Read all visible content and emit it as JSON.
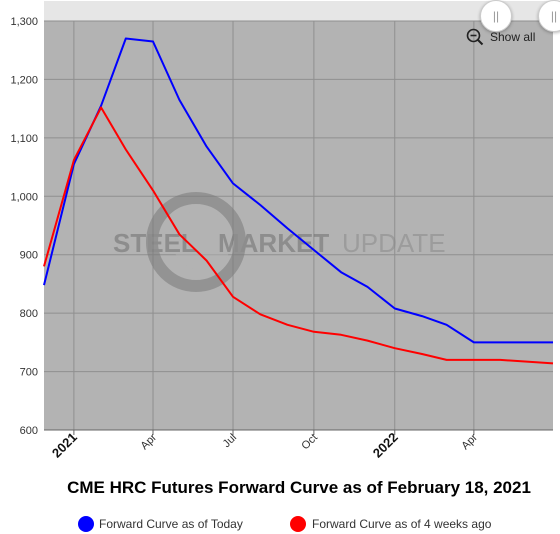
{
  "chart_data": {
    "type": "line",
    "title": "CME HRC Futures Forward Curve as of February 18, 2021",
    "ylim": [
      600,
      1300
    ],
    "yticks": [
      600,
      700,
      800,
      900,
      1000,
      1100,
      1200,
      1300
    ],
    "ytick_labels": [
      "600",
      "700",
      "800",
      "900",
      "1,000",
      "1,100",
      "1,200",
      "1,300"
    ],
    "xlim": [
      "2020-11-28",
      "2022-06-30"
    ],
    "xticks": [
      {
        "date": "2021-01-01",
        "label": "2021",
        "bold": true
      },
      {
        "date": "2021-04-01",
        "label": "Apr",
        "bold": false
      },
      {
        "date": "2021-07-01",
        "label": "Jul",
        "bold": false
      },
      {
        "date": "2021-10-01",
        "label": "Oct",
        "bold": false
      },
      {
        "date": "2022-01-01",
        "label": "2022",
        "bold": true
      },
      {
        "date": "2022-04-01",
        "label": "Apr",
        "bold": false
      }
    ],
    "grid": true,
    "legend_position": "bottom",
    "series": [
      {
        "name": "Forward Curve as of Today",
        "color": "#0000ff",
        "x": [
          "2020-11-28",
          "2021-01-01",
          "2021-02-01",
          "2021-03-01",
          "2021-04-01",
          "2021-05-01",
          "2021-06-01",
          "2021-07-01",
          "2021-08-01",
          "2021-09-01",
          "2021-10-01",
          "2021-11-01",
          "2021-12-01",
          "2022-01-01",
          "2022-02-01",
          "2022-03-01",
          "2022-04-01",
          "2022-05-01",
          "2022-06-30"
        ],
        "y": [
          848,
          1055,
          1155,
          1270,
          1265,
          1165,
          1085,
          1022,
          985,
          945,
          908,
          870,
          845,
          808,
          795,
          780,
          750,
          750,
          750
        ]
      },
      {
        "name": "Forward Curve as of 4 weeks ago",
        "color": "#ff0000",
        "x": [
          "2020-11-28",
          "2021-01-01",
          "2021-02-01",
          "2021-03-01",
          "2021-04-01",
          "2021-05-01",
          "2021-06-01",
          "2021-07-01",
          "2021-08-01",
          "2021-09-01",
          "2021-10-01",
          "2021-11-01",
          "2021-12-01",
          "2022-01-01",
          "2022-02-01",
          "2022-03-01",
          "2022-04-01",
          "2022-05-01",
          "2022-06-30"
        ],
        "y": [
          880,
          1062,
          1152,
          1080,
          1010,
          935,
          890,
          828,
          798,
          780,
          768,
          763,
          753,
          740,
          730,
          720,
          720,
          720,
          714
        ]
      }
    ]
  },
  "watermark": {
    "word1": "STEEL",
    "word2": "MARKET",
    "word3": "UPDATE"
  },
  "controls": {
    "show_all_label": "Show all",
    "left_handle": "||",
    "right_handle": "||"
  },
  "colors": {
    "plot_bg": "#b3b3b3",
    "navigator_bg": "#e6e6e6",
    "grid": "#8f8f8f"
  }
}
